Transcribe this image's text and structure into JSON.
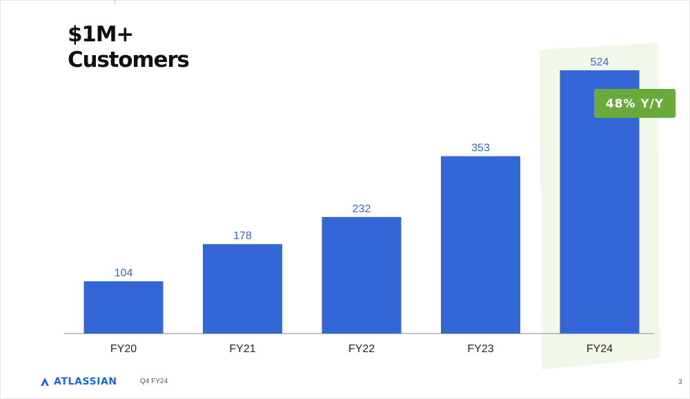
{
  "slide": {
    "title_line1": "$1M+",
    "title_line2": "Customers",
    "footer_logo_text": "ATLASSIAN",
    "footer_period": "Q4 FY24",
    "page_number": "3"
  },
  "colors": {
    "bar": "#3366d6",
    "value_label": "#3366d6",
    "highlight_panel": "#f1f8e8",
    "badge": "#6aaa3a",
    "badge_text": "#ffffff",
    "baseline": "#9e9e9e",
    "brand": "#1868db"
  },
  "chart_data": {
    "type": "bar",
    "categories": [
      "FY20",
      "FY21",
      "FY22",
      "FY23",
      "FY24"
    ],
    "values": [
      104,
      178,
      232,
      353,
      524
    ],
    "title": "$1M+ Customers",
    "xlabel": "",
    "ylabel": "",
    "ylim": [
      0,
      555
    ],
    "grid": false,
    "highlighted_category": "FY24",
    "annotation": "48% Y/Y"
  }
}
